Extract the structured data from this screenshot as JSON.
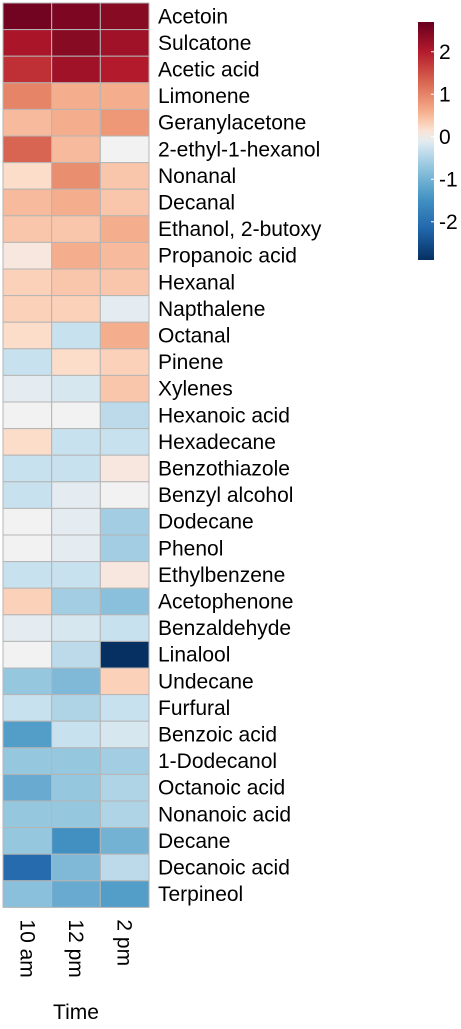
{
  "chart_data": {
    "type": "heatmap",
    "xlabel": "Time",
    "columns": [
      "10 am",
      "12 pm",
      "2 pm"
    ],
    "rows": [
      "Acetoin",
      "Sulcatone",
      "Acetic acid",
      "Limonene",
      "Geranylacetone",
      "2-ethyl-1-hexanol",
      "Nonanal",
      "Decanal",
      "Ethanol, 2-butoxy",
      "Propanoic acid",
      "Hexanal",
      "Napthalene",
      "Octanal",
      "Pinene",
      "Xylenes",
      "Hexanoic acid",
      "Hexadecane",
      "Benzothiazole",
      "Benzyl alcohol",
      "Dodecane",
      "Phenol",
      "Ethylbenzene",
      "Acetophenone",
      "Benzaldehyde",
      "Linalool",
      "Undecane",
      "Furfural",
      "Benzoic acid",
      "1-Dodecanol",
      "Octanoic acid",
      "Nonanoic acid",
      "Decane",
      "Decanoic acid",
      "Terpineol"
    ],
    "values": [
      [
        2.6,
        2.5,
        2.4
      ],
      [
        2.1,
        2.4,
        2.2
      ],
      [
        1.8,
        2.2,
        2.0
      ],
      [
        1.0,
        0.6,
        0.6
      ],
      [
        0.5,
        0.6,
        0.8
      ],
      [
        1.3,
        0.5,
        0.0
      ],
      [
        0.2,
        0.9,
        0.4
      ],
      [
        0.5,
        0.6,
        0.4
      ],
      [
        0.4,
        0.4,
        0.6
      ],
      [
        0.1,
        0.6,
        0.5
      ],
      [
        0.3,
        0.4,
        0.4
      ],
      [
        0.3,
        0.3,
        -0.1
      ],
      [
        0.2,
        -0.3,
        0.6
      ],
      [
        -0.3,
        0.2,
        0.3
      ],
      [
        -0.1,
        -0.2,
        0.4
      ],
      [
        0.0,
        0.0,
        -0.4
      ],
      [
        0.2,
        -0.3,
        -0.3
      ],
      [
        -0.3,
        -0.3,
        0.1
      ],
      [
        -0.3,
        -0.1,
        0.0
      ],
      [
        0.0,
        -0.1,
        -0.6
      ],
      [
        0.0,
        -0.1,
        -0.6
      ],
      [
        -0.3,
        -0.3,
        0.1
      ],
      [
        0.3,
        -0.6,
        -0.8
      ],
      [
        -0.1,
        -0.2,
        -0.3
      ],
      [
        0.0,
        -0.4,
        -2.9
      ],
      [
        -0.7,
        -0.9,
        0.3
      ],
      [
        -0.3,
        -0.5,
        -0.3
      ],
      [
        -1.3,
        -0.3,
        -0.2
      ],
      [
        -0.7,
        -0.7,
        -0.6
      ],
      [
        -1.1,
        -0.7,
        -0.5
      ],
      [
        -0.7,
        -0.7,
        -0.5
      ],
      [
        -0.7,
        -1.5,
        -1.0
      ],
      [
        -2.1,
        -0.9,
        -0.4
      ],
      [
        -0.8,
        -1.1,
        -1.3
      ]
    ],
    "colorbar": {
      "ticks": [
        2,
        1,
        0,
        -1,
        -2
      ],
      "tick_labels": [
        "2",
        "1",
        "0",
        "-1",
        "-2"
      ],
      "range": [
        -2.9,
        2.7
      ],
      "colors": {
        "high": "#67001f",
        "mid": "#f7f7f7",
        "low": "#053061"
      }
    },
    "grid": true,
    "legend_position": "top-right"
  }
}
